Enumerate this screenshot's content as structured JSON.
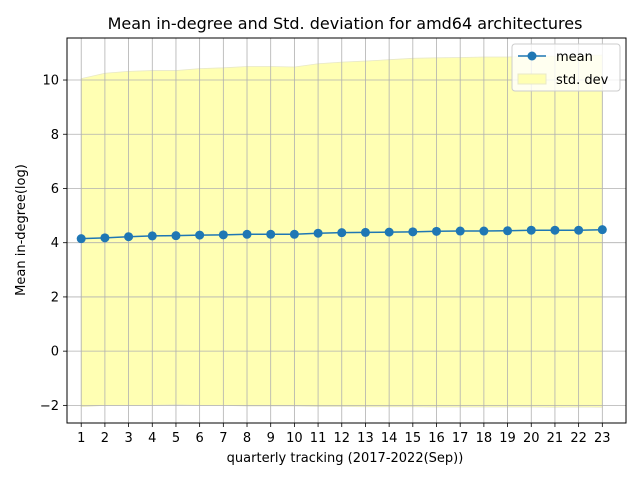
{
  "chart_data": {
    "type": "line",
    "title": "Mean in-degree and Std. deviation for amd64 architectures",
    "xlabel": "quarterly tracking (2017-2022(Sep))",
    "ylabel": "Mean in-degree(log)",
    "x": [
      1,
      2,
      3,
      4,
      5,
      6,
      7,
      8,
      9,
      10,
      11,
      12,
      13,
      14,
      15,
      16,
      17,
      18,
      19,
      20,
      21,
      22,
      23
    ],
    "xlim": [
      0.4,
      24.0
    ],
    "ylim": [
      -2.65,
      11.55
    ],
    "yticks": [
      -2,
      0,
      2,
      4,
      6,
      8,
      10
    ],
    "grid": true,
    "legend_position": "top-right",
    "series": [
      {
        "name": "mean",
        "kind": "line-marker",
        "color": "#1f77b4",
        "values": [
          4.15,
          4.18,
          4.22,
          4.25,
          4.26,
          4.28,
          4.29,
          4.31,
          4.31,
          4.31,
          4.35,
          4.37,
          4.38,
          4.39,
          4.4,
          4.42,
          4.43,
          4.43,
          4.44,
          4.46,
          4.46,
          4.46,
          4.48
        ]
      },
      {
        "name": "std. dev",
        "kind": "band",
        "color": "#ffffb3",
        "edge_color": "#e8e8c8",
        "lower": [
          -2.05,
          -2.0,
          -2.0,
          -2.0,
          -1.98,
          -2.0,
          -2.0,
          -2.02,
          -2.02,
          -2.02,
          -2.04,
          -2.04,
          -2.05,
          -2.05,
          -2.05,
          -2.06,
          -2.06,
          -2.06,
          -2.06,
          -2.06,
          -2.07,
          -2.06,
          -2.07
        ],
        "upper": [
          10.05,
          10.25,
          10.32,
          10.35,
          10.35,
          10.42,
          10.45,
          10.5,
          10.5,
          10.48,
          10.6,
          10.66,
          10.7,
          10.75,
          10.8,
          10.82,
          10.83,
          10.85,
          10.85,
          10.88,
          10.88,
          10.9,
          10.92
        ]
      }
    ]
  }
}
